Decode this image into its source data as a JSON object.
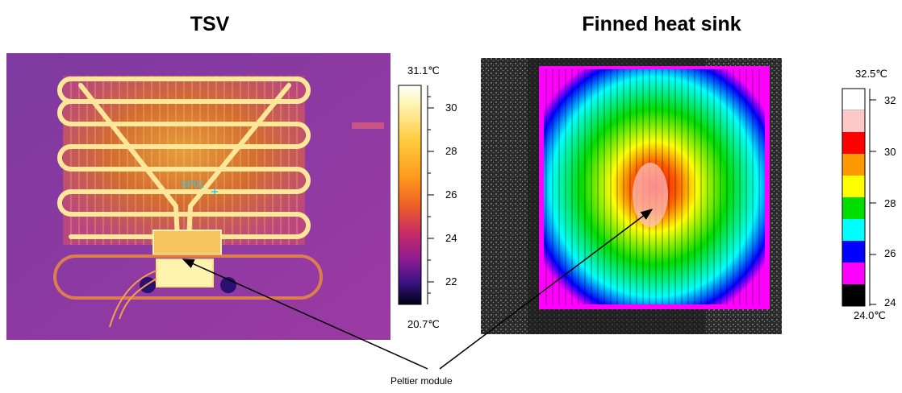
{
  "panels": [
    {
      "title": "TSV",
      "max_label": "31.1℃",
      "min_label": "20.7℃",
      "ticks": [
        "30",
        "28",
        "26",
        "24",
        "22"
      ],
      "marker": "SP01",
      "colors": [
        "#ffffff",
        "#fff3a0",
        "#ffd64a",
        "#ffa21e",
        "#f26a1a",
        "#d4325e",
        "#9b1e8c",
        "#53168f",
        "#18105e",
        "#000000"
      ]
    },
    {
      "title": "Finned heat sink",
      "max_label": "32.5℃",
      "min_label": "24.0℃",
      "ticks": [
        "32",
        "30",
        "28",
        "26",
        "24"
      ],
      "bands": [
        "#ffffff",
        "#ffc8c8",
        "#ff0000",
        "#ff9900",
        "#ffff00",
        "#00dd00",
        "#00ffff",
        "#0000ff",
        "#ff00ff",
        "#000000"
      ]
    }
  ],
  "annotation": "Peltier module"
}
